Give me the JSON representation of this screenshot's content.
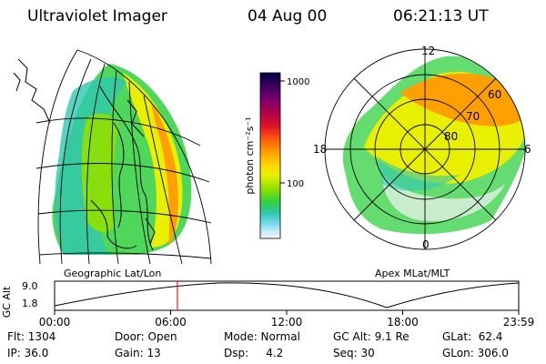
{
  "header": {
    "instrument": "Ultraviolet Imager",
    "date": "04 Aug 00",
    "time": "06:21:13 UT"
  },
  "geo_panel": {
    "label": "Geographic Lat/Lon"
  },
  "polar_panel": {
    "label": "Apex MLat/MLT",
    "mlt_labels": {
      "top": "12",
      "bottom": "0",
      "left": "18",
      "right": "6"
    },
    "lat_labels": [
      "60",
      "70",
      "80"
    ]
  },
  "colorbar": {
    "unit": "photon cm⁻²s⁻¹",
    "ticks": [
      {
        "label": "1000",
        "value": 1000
      },
      {
        "label": "100",
        "value": 100
      }
    ],
    "colors": [
      "#000040",
      "#3a0060",
      "#7a0070",
      "#b0004a",
      "#e0102a",
      "#ff5a10",
      "#ffa000",
      "#ffd800",
      "#e8f000",
      "#90e000",
      "#30d040",
      "#30c8b0",
      "#7ad8f0",
      "#c8ecf8",
      "#f4f4f4"
    ]
  },
  "alt_strip": {
    "ylabel": "GC Alt",
    "yticks": [
      "9.0",
      "1.8"
    ],
    "xticks": [
      "00:00",
      "06:00",
      "12:00",
      "18:00",
      "23:59"
    ],
    "current_hours": 6.35
  },
  "info": {
    "flt": "Flt: 1304",
    "ip": "IP: 36.0",
    "door": "Door: Open",
    "gain": "Gain: 13",
    "mode": "Mode: Normal",
    "dsp": "Dsp:     4.2",
    "gcalt": "GC Alt: 9.1 Re",
    "seq": "Seq: 30",
    "glat": "GLat:  62.4",
    "glon": "GLon: 306.0"
  }
}
